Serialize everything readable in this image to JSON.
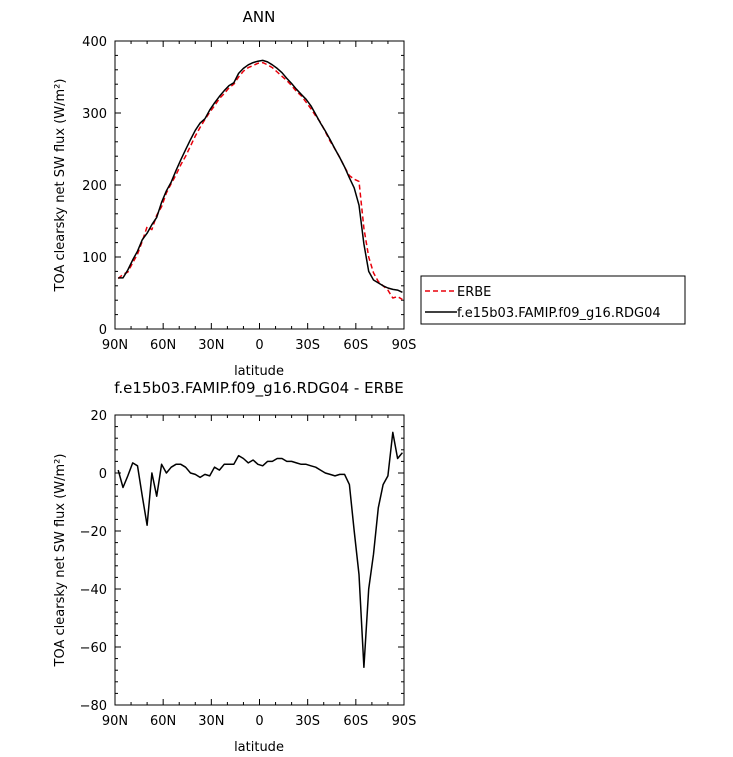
{
  "chart_data": [
    {
      "type": "line",
      "title": "ANN",
      "xlabel": "latitude",
      "ylabel": "TOA clearsky net SW flux (W/m²)",
      "xlim": [
        -90,
        90
      ],
      "ylim": [
        0,
        400
      ],
      "x_ticks": [
        -90,
        -60,
        -30,
        0,
        30,
        60,
        90
      ],
      "x_tick_labels": [
        "90N",
        "60N",
        "30N",
        "0",
        "30S",
        "60S",
        "90S"
      ],
      "y_ticks": [
        0,
        100,
        200,
        300,
        400
      ],
      "y_tick_labels": [
        "0",
        "100",
        "200",
        "300",
        "400"
      ],
      "grid": false,
      "legend_position": "right",
      "series": [
        {
          "name": "ERBE",
          "color": "#e8000b",
          "dash": "dashed",
          "x": [
            -88,
            -85,
            -82,
            -79,
            -76,
            -73,
            -70,
            -67,
            -64,
            -61,
            -58,
            -55,
            -52,
            -49,
            -46,
            -43,
            -40,
            -37,
            -34,
            -31,
            -28,
            -25,
            -22,
            -19,
            -16,
            -13,
            -10,
            -7,
            -4,
            -1,
            2,
            5,
            8,
            11,
            14,
            17,
            20,
            23,
            26,
            29,
            32,
            35,
            38,
            41,
            44,
            47,
            50,
            53,
            56,
            59,
            62,
            65,
            68,
            71,
            74,
            77,
            80,
            83,
            86,
            89
          ],
          "y": [
            70,
            76,
            79,
            92,
            104,
            122,
            142,
            138,
            158,
            170,
            189,
            202,
            214,
            228,
            240,
            254,
            268,
            280,
            291,
            301,
            310,
            320,
            327,
            335,
            340,
            350,
            358,
            363,
            366,
            369,
            370,
            367,
            363,
            357,
            351,
            345,
            338,
            330,
            324,
            315,
            306,
            296,
            287,
            274,
            261,
            250,
            238,
            225,
            213,
            208,
            205,
            140,
            100,
            78,
            66,
            60,
            54,
            43,
            45,
            41
          ]
        },
        {
          "name": "f.e15b03.FAMIP.f09_g16.RDG04",
          "color": "#000000",
          "dash": "solid",
          "x": [
            -88,
            -85,
            -82,
            -79,
            -76,
            -73,
            -70,
            -67,
            -64,
            -61,
            -58,
            -55,
            -52,
            -49,
            -46,
            -43,
            -40,
            -37,
            -34,
            -31,
            -28,
            -25,
            -22,
            -19,
            -16,
            -13,
            -10,
            -7,
            -4,
            -1,
            2,
            5,
            8,
            11,
            14,
            17,
            20,
            23,
            26,
            29,
            32,
            35,
            38,
            41,
            44,
            47,
            50,
            53,
            56,
            59,
            62,
            65,
            68,
            71,
            74,
            77,
            80,
            83,
            86,
            89
          ],
          "y": [
            71,
            71,
            82,
            96,
            108,
            124,
            133,
            145,
            155,
            176,
            192,
            204,
            220,
            235,
            249,
            263,
            276,
            286,
            292,
            304,
            314,
            323,
            331,
            338,
            342,
            355,
            362,
            367,
            370,
            372,
            373,
            371,
            367,
            362,
            356,
            348,
            341,
            333,
            326,
            319,
            310,
            298,
            286,
            275,
            263,
            250,
            238,
            225,
            210,
            196,
            172,
            118,
            80,
            68,
            64,
            60,
            57,
            55,
            54,
            51
          ]
        }
      ]
    },
    {
      "type": "line",
      "title": "f.e15b03.FAMIP.f09_g16.RDG04 - ERBE",
      "xlabel": "latitude",
      "ylabel": "TOA clearsky net SW flux (W/m²)",
      "xlim": [
        -90,
        90
      ],
      "ylim": [
        -80,
        20
      ],
      "x_ticks": [
        -90,
        -60,
        -30,
        0,
        30,
        60,
        90
      ],
      "x_tick_labels": [
        "90N",
        "60N",
        "30N",
        "0",
        "30S",
        "60S",
        "90S"
      ],
      "y_ticks": [
        -80,
        -60,
        -40,
        -20,
        0,
        20
      ],
      "y_tick_labels": [
        "−80",
        "−60",
        "−40",
        "−20",
        "0",
        "20"
      ],
      "grid": false,
      "series": [
        {
          "color": "#000000",
          "dash": "solid",
          "x": [
            -88,
            -85,
            -82,
            -79,
            -76,
            -73,
            -70,
            -67,
            -64,
            -61,
            -58,
            -55,
            -52,
            -49,
            -46,
            -43,
            -40,
            -37,
            -34,
            -31,
            -28,
            -25,
            -22,
            -19,
            -16,
            -13,
            -10,
            -7,
            -4,
            -1,
            2,
            5,
            8,
            11,
            14,
            17,
            20,
            23,
            26,
            29,
            32,
            35,
            38,
            41,
            44,
            47,
            50,
            53,
            56,
            59,
            62,
            65,
            68,
            71,
            74,
            77,
            80,
            83,
            86,
            89
          ],
          "y": [
            1,
            -5,
            -1,
            3.5,
            2.5,
            -8,
            -18,
            0,
            -8,
            3,
            0,
            2,
            3,
            3,
            2,
            0,
            -0.5,
            -1.5,
            -0.5,
            -1,
            2,
            1,
            3,
            3,
            3,
            6,
            5,
            3.5,
            4.5,
            3,
            2.5,
            4,
            4,
            5,
            5,
            4,
            4,
            3.5,
            3,
            3,
            2.5,
            2,
            1,
            0,
            -0.5,
            -1,
            -0.5,
            -0.5,
            -4,
            -20,
            -35,
            -67,
            -40,
            -28,
            -12,
            -4,
            -1,
            14,
            5,
            7
          ]
        }
      ]
    }
  ]
}
